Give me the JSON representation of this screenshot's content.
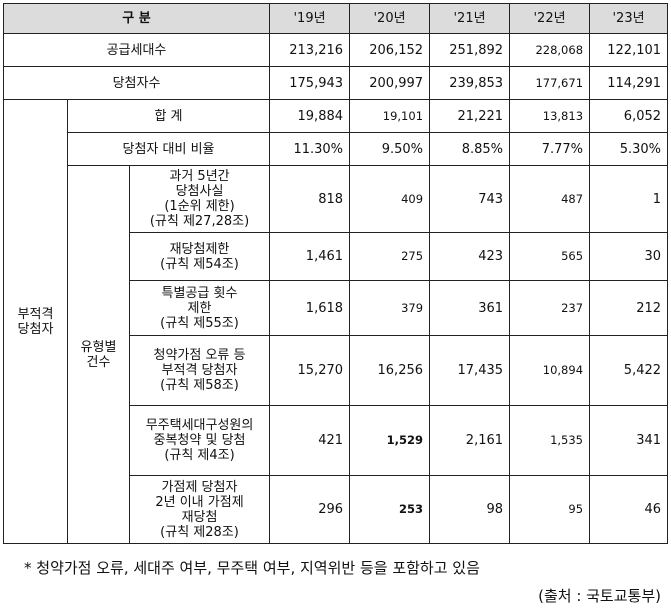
{
  "header": {
    "category": "구 분",
    "years": [
      "'19년",
      "'20년",
      "'21년",
      "'22년",
      "'23년"
    ]
  },
  "supply": {
    "label": "공급세대수",
    "values": [
      "213,216",
      "206,152",
      "251,892",
      "228,068",
      "122,101"
    ]
  },
  "winners": {
    "label": "당첨자수",
    "values": [
      "175,943",
      "200,997",
      "239,853",
      "177,671",
      "114,291"
    ]
  },
  "ineligible": {
    "group_label": "부적격\n당첨자",
    "total": {
      "label": "합 계",
      "values": [
        "19,884",
        "19,101",
        "21,221",
        "13,813",
        "6,052"
      ]
    },
    "ratio": {
      "label": "당첨자 대비 비율",
      "values": [
        "11.30%",
        "9.50%",
        "8.85%",
        "7.77%",
        "5.30%"
      ]
    },
    "type_group_label": "유형별\n건수",
    "types": [
      {
        "label": "과거 5년간\n당첨사실\n(1순위 제한)\n(규칙 제27,28조)",
        "values": [
          "818",
          "409",
          "743",
          "487",
          "1"
        ]
      },
      {
        "label": "재당첨제한\n(규칙 제54조)",
        "values": [
          "1,461",
          "275",
          "423",
          "565",
          "30"
        ]
      },
      {
        "label": "특별공급 횟수\n제한\n(규칙 제55조)",
        "values": [
          "1,618",
          "379",
          "361",
          "237",
          "212"
        ]
      },
      {
        "label": "청약가점 오류 등\n부적격 당첨자\n(규칙 제58조)",
        "values": [
          "15,270",
          "16,256",
          "17,435",
          "10,894",
          "5,422"
        ]
      },
      {
        "label": "무주택세대구성원의\n중복청약 및 당첨\n(규칙 제4조)",
        "values": [
          "421",
          "1,529",
          "2,161",
          "1,535",
          "341"
        ]
      },
      {
        "label": "가점제 당첨자\n2년 이내 가점제\n재당첨\n(규칙 제28조)",
        "values": [
          "296",
          "253",
          "98",
          "95",
          "46"
        ]
      }
    ]
  },
  "footnote": "* 청약가점 오류, 세대주 여부, 무주택 여부, 지역위반 등을 포함하고 있음",
  "source": "(출처 : 국토교통부)"
}
